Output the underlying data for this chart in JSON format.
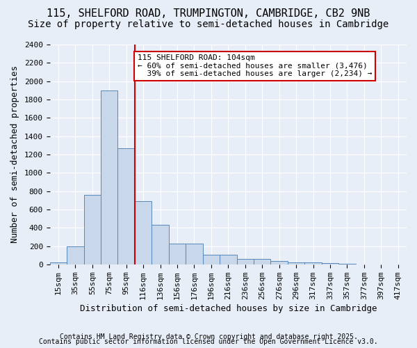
{
  "title1": "115, SHELFORD ROAD, TRUMPINGTON, CAMBRIDGE, CB2 9NB",
  "title2": "Size of property relative to semi-detached houses in Cambridge",
  "xlabel": "Distribution of semi-detached houses by size in Cambridge",
  "ylabel": "Number of semi-detached properties",
  "bin_labels": [
    "15sqm",
    "35sqm",
    "55sqm",
    "75sqm",
    "95sqm",
    "116sqm",
    "136sqm",
    "156sqm",
    "176sqm",
    "196sqm",
    "216sqm",
    "236sqm",
    "256sqm",
    "276sqm",
    "296sqm",
    "317sqm",
    "337sqm",
    "357sqm",
    "377sqm",
    "397sqm",
    "417sqm"
  ],
  "bar_heights": [
    25,
    200,
    760,
    1900,
    1270,
    690,
    430,
    230,
    230,
    105,
    105,
    60,
    60,
    35,
    20,
    20,
    15,
    5,
    2,
    1,
    0
  ],
  "bar_color": "#c8d8ea",
  "bar_edge_color": "#5588bb",
  "property_label": "115 SHELFORD ROAD: 104sqm",
  "pct_smaller": 60,
  "n_smaller": 3476,
  "pct_larger": 39,
  "n_larger": 2234,
  "vline_x_index": 4.5,
  "vline_color": "#cc0000",
  "ylim": [
    0,
    2400
  ],
  "yticks": [
    0,
    200,
    400,
    600,
    800,
    1000,
    1200,
    1400,
    1600,
    1800,
    2000,
    2200,
    2400
  ],
  "background_color": "#e8eef8",
  "annotation_box_color": "#ffffff",
  "annotation_box_edge": "#cc0000",
  "footer1": "Contains HM Land Registry data © Crown copyright and database right 2025.",
  "footer2": "Contains public sector information licensed under the Open Government Licence v3.0.",
  "title1_fontsize": 11,
  "title2_fontsize": 10,
  "xlabel_fontsize": 9,
  "ylabel_fontsize": 9,
  "tick_fontsize": 8,
  "annotation_fontsize": 8,
  "footer_fontsize": 7
}
